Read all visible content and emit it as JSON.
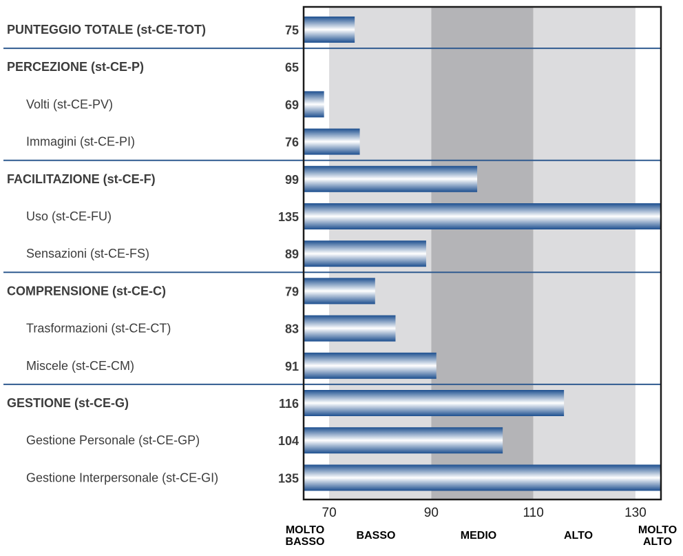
{
  "chart_data": {
    "type": "bar",
    "orientation": "horizontal",
    "xlim": [
      65,
      135
    ],
    "xticks": [
      70,
      90,
      110,
      130
    ],
    "bands": [
      {
        "label_lines": [
          "MOLTO",
          "BASSO"
        ],
        "from": 65,
        "to": 70,
        "color": "#ffffff"
      },
      {
        "label_lines": [
          "BASSO"
        ],
        "from": 70,
        "to": 90,
        "color": "#dcdcde"
      },
      {
        "label_lines": [
          "MEDIO"
        ],
        "from": 90,
        "to": 110,
        "color": "#b4b4b7"
      },
      {
        "label_lines": [
          "ALTO"
        ],
        "from": 110,
        "to": 130,
        "color": "#dcdcde"
      },
      {
        "label_lines": [
          "MOLTO",
          "ALTO"
        ],
        "from": 130,
        "to": 135,
        "color": "#ffffff"
      }
    ],
    "rows": [
      {
        "label": "PUNTEGGIO TOTALE (st-CE-TOT)",
        "value": 75,
        "bold": true,
        "separator_after": true
      },
      {
        "label": "PERCEZIONE (st-CE-P)",
        "value": 65,
        "bold": true,
        "separator_after": false
      },
      {
        "label": "Volti (st-CE-PV)",
        "value": 69,
        "bold": false,
        "separator_after": false
      },
      {
        "label": "Immagini (st-CE-PI)",
        "value": 76,
        "bold": false,
        "separator_after": true
      },
      {
        "label": "FACILITAZIONE (st-CE-F)",
        "value": 99,
        "bold": true,
        "separator_after": false
      },
      {
        "label": "Uso (st-CE-FU)",
        "value": 135,
        "bold": false,
        "separator_after": false
      },
      {
        "label": "Sensazioni (st-CE-FS)",
        "value": 89,
        "bold": false,
        "separator_after": true
      },
      {
        "label": "COMPRENSIONE (st-CE-C)",
        "value": 79,
        "bold": true,
        "separator_after": false
      },
      {
        "label": "Trasformazioni (st-CE-CT)",
        "value": 83,
        "bold": false,
        "separator_after": false
      },
      {
        "label": "Miscele (st-CE-CM)",
        "value": 91,
        "bold": false,
        "separator_after": true
      },
      {
        "label": "GESTIONE (st-CE-G)",
        "value": 116,
        "bold": true,
        "separator_after": false
      },
      {
        "label": "Gestione Personale (st-CE-GP)",
        "value": 104,
        "bold": false,
        "separator_after": false
      },
      {
        "label": "Gestione Interpersonale (st-CE-GI)",
        "value": 135,
        "bold": false,
        "separator_after": false
      }
    ],
    "colors": {
      "bar_dark": "#1d4f8f",
      "bar_light": "#ffffff",
      "separator": "#2f5a8f",
      "frame": "#1a1a1a"
    }
  }
}
